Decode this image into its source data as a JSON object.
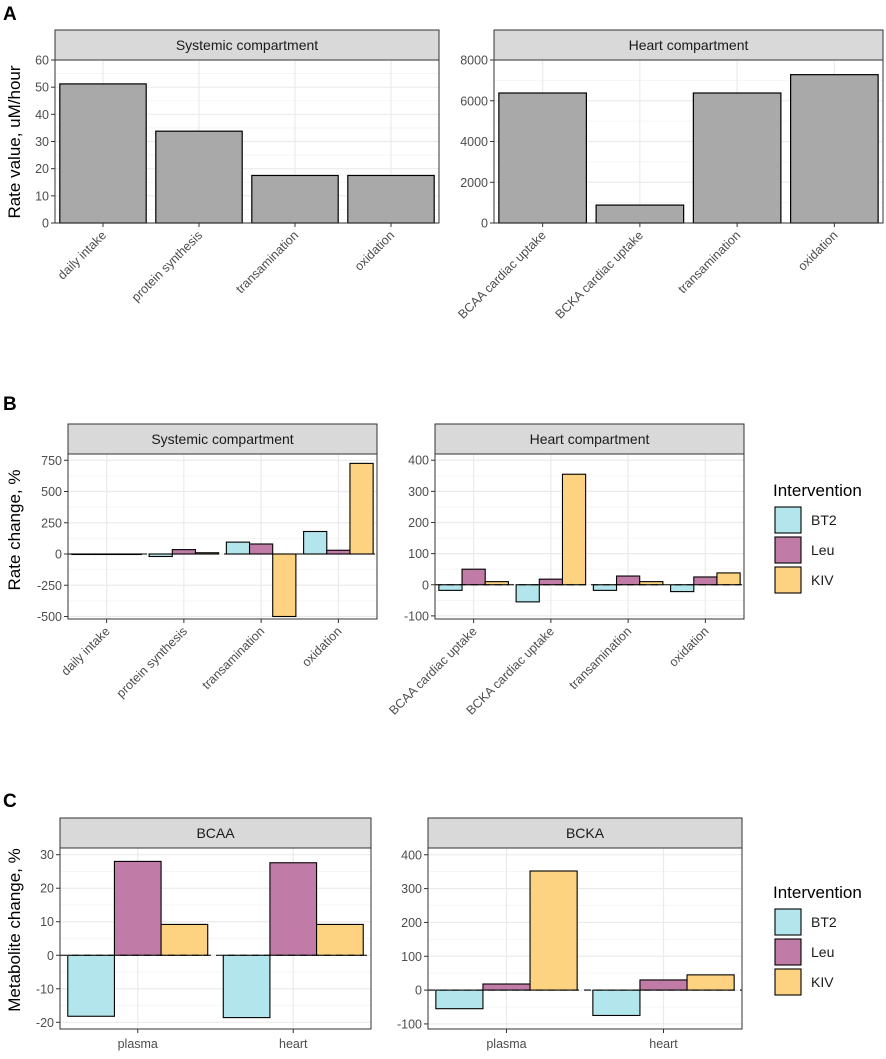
{
  "colors": {
    "BT2": "#b3e6ec",
    "Leu": "#c07ca6",
    "KIV": "#fdd381",
    "gray_bar": "#a9a9a9",
    "strip_bg": "#d9d9d9",
    "grid": "#ebebeb"
  },
  "chart_data": [
    {
      "id": "A",
      "type": "bar",
      "ylabel": "Rate value, uM/hour",
      "panels": [
        {
          "strip": "Systemic compartment",
          "categories": [
            "daily intake",
            "protein synthesis",
            "transamination",
            "oxidation"
          ],
          "values": [
            51.2,
            33.8,
            17.5,
            17.5
          ],
          "ylim": [
            0,
            60
          ],
          "yticks": [
            0,
            10,
            20,
            30,
            40,
            50,
            60
          ]
        },
        {
          "strip": "Heart compartment",
          "categories": [
            "BCAA cardiac uptake",
            "BCKA cardiac uptake",
            "transamination",
            "oxidation"
          ],
          "values": [
            6380,
            880,
            6380,
            7280
          ],
          "ylim": [
            0,
            8000
          ],
          "yticks": [
            0,
            2000,
            4000,
            6000,
            8000
          ]
        }
      ]
    },
    {
      "id": "B",
      "type": "bar",
      "ylabel": "Rate change, %",
      "series_names": [
        "BT2",
        "Leu",
        "KIV"
      ],
      "panels": [
        {
          "strip": "Systemic compartment",
          "categories": [
            "daily intake",
            "protein synthesis",
            "transamination",
            "oxidation"
          ],
          "series": [
            {
              "name": "BT2",
              "values": [
                0,
                -20,
                95,
                180
              ]
            },
            {
              "name": "Leu",
              "values": [
                0,
                35,
                80,
                30
              ]
            },
            {
              "name": "KIV",
              "values": [
                0,
                10,
                -500,
                725
              ]
            }
          ],
          "ylim": [
            -520,
            800
          ],
          "yticks": [
            -500,
            -250,
            0,
            250,
            500,
            750
          ],
          "yticklabels": [
            "-500",
            "-250",
            "0",
            "250",
            "500",
            "750"
          ]
        },
        {
          "strip": "Heart compartment",
          "categories": [
            "BCAA cardiac uptake",
            "BCKA cardiac uptake",
            "transamination",
            "oxidation"
          ],
          "series": [
            {
              "name": "BT2",
              "values": [
                -18,
                -55,
                -18,
                -22
              ]
            },
            {
              "name": "Leu",
              "values": [
                50,
                18,
                28,
                25
              ]
            },
            {
              "name": "KIV",
              "values": [
                10,
                355,
                10,
                38
              ]
            }
          ],
          "ylim": [
            -110,
            420
          ],
          "yticks": [
            -100,
            0,
            100,
            200,
            300,
            400
          ],
          "yticklabels": [
            "-100",
            "0",
            "100",
            "200",
            "300",
            "400"
          ]
        }
      ]
    },
    {
      "id": "C",
      "type": "bar",
      "ylabel": "Metabolite change, %",
      "series_names": [
        "BT2",
        "Leu",
        "KIV"
      ],
      "panels": [
        {
          "strip": "BCAA",
          "categories": [
            "plasma",
            "heart"
          ],
          "series": [
            {
              "name": "BT2",
              "values": [
                -18.2,
                -18.6
              ]
            },
            {
              "name": "Leu",
              "values": [
                28.0,
                27.6
              ]
            },
            {
              "name": "KIV",
              "values": [
                9.2,
                9.2
              ]
            }
          ],
          "ylim": [
            -22,
            32
          ],
          "yticks": [
            -20,
            -10,
            0,
            10,
            20,
            30
          ],
          "yticklabels": [
            "-20",
            "-10",
            "0",
            "10",
            "20",
            "30"
          ]
        },
        {
          "strip": "BCKA",
          "categories": [
            "plasma",
            "heart"
          ],
          "series": [
            {
              "name": "BT2",
              "values": [
                -55,
                -75
              ]
            },
            {
              "name": "Leu",
              "values": [
                18,
                30
              ]
            },
            {
              "name": "KIV",
              "values": [
                352,
                45
              ]
            }
          ],
          "ylim": [
            -115,
            420
          ],
          "yticks": [
            -100,
            0,
            100,
            200,
            300,
            400
          ],
          "yticklabels": [
            "-100",
            "0",
            "100",
            "200",
            "300",
            "400"
          ]
        }
      ]
    }
  ],
  "legends": [
    {
      "title": "Intervention",
      "items": [
        "BT2",
        "Leu",
        "KIV"
      ]
    },
    {
      "title": "Intervention",
      "items": [
        "BT2",
        "Leu",
        "KIV"
      ]
    }
  ]
}
